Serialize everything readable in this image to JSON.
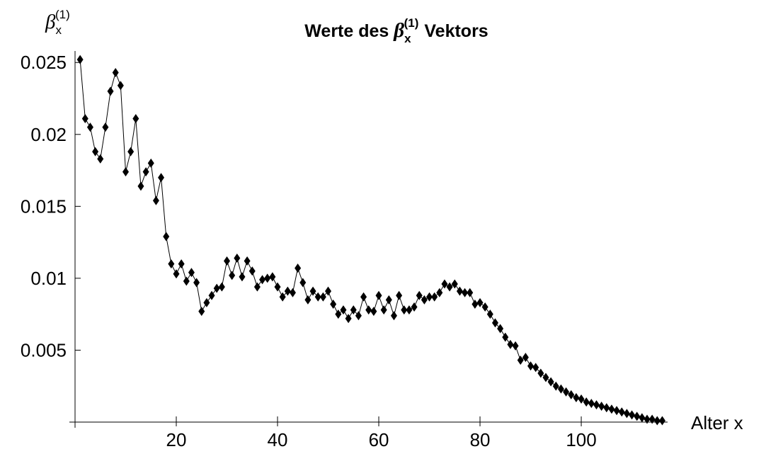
{
  "chart_data": {
    "type": "line",
    "title": {
      "prefix": "Werte des",
      "symbol": "β",
      "subscript": "x",
      "superscript": "(1)",
      "suffix": "Vektors"
    },
    "ylabel": {
      "symbol": "β",
      "subscript": "x",
      "superscript": "(1)"
    },
    "xlabel": "Alter x",
    "x": [
      1,
      2,
      3,
      4,
      5,
      6,
      7,
      8,
      9,
      10,
      11,
      12,
      13,
      14,
      15,
      16,
      17,
      18,
      19,
      20,
      21,
      22,
      23,
      24,
      25,
      26,
      27,
      28,
      29,
      30,
      31,
      32,
      33,
      34,
      35,
      36,
      37,
      38,
      39,
      40,
      41,
      42,
      43,
      44,
      45,
      46,
      47,
      48,
      49,
      50,
      51,
      52,
      53,
      54,
      55,
      56,
      57,
      58,
      59,
      60,
      61,
      62,
      63,
      64,
      65,
      66,
      67,
      68,
      69,
      70,
      71,
      72,
      73,
      74,
      75,
      76,
      77,
      78,
      79,
      80,
      81,
      82,
      83,
      84,
      85,
      86,
      87,
      88,
      89,
      90,
      91,
      92,
      93,
      94,
      95,
      96,
      97,
      98,
      99,
      100,
      101,
      102,
      103,
      104,
      105,
      106,
      107,
      108,
      109,
      110,
      111,
      112,
      113,
      114,
      115,
      116
    ],
    "series": [
      {
        "name": "β",
        "color": "#000000",
        "values": [
          0.0252,
          0.0211,
          0.0205,
          0.0188,
          0.0183,
          0.0205,
          0.023,
          0.0243,
          0.0234,
          0.0174,
          0.0188,
          0.0211,
          0.0164,
          0.0174,
          0.018,
          0.0154,
          0.017,
          0.0129,
          0.011,
          0.0103,
          0.011,
          0.0098,
          0.0104,
          0.0097,
          0.0077,
          0.0083,
          0.0088,
          0.0093,
          0.0094,
          0.0112,
          0.0102,
          0.0114,
          0.0101,
          0.0112,
          0.0105,
          0.0094,
          0.0099,
          0.01,
          0.0101,
          0.0094,
          0.0087,
          0.0091,
          0.009,
          0.0107,
          0.0097,
          0.0085,
          0.0091,
          0.0087,
          0.0087,
          0.0091,
          0.0082,
          0.0075,
          0.0078,
          0.0072,
          0.0078,
          0.0074,
          0.0087,
          0.0078,
          0.0077,
          0.0088,
          0.0078,
          0.0085,
          0.0074,
          0.0088,
          0.0078,
          0.0078,
          0.008,
          0.0088,
          0.0085,
          0.0087,
          0.0087,
          0.009,
          0.0096,
          0.0094,
          0.0096,
          0.0091,
          0.009,
          0.009,
          0.0082,
          0.0083,
          0.008,
          0.0075,
          0.0069,
          0.0065,
          0.0059,
          0.0054,
          0.0053,
          0.0043,
          0.0045,
          0.0039,
          0.0038,
          0.0034,
          0.0031,
          0.0028,
          0.0025,
          0.0023,
          0.0021,
          0.0019,
          0.0017,
          0.0016,
          0.0014,
          0.0013,
          0.0012,
          0.0011,
          0.001,
          0.0009,
          0.0008,
          0.0007,
          0.0006,
          0.0005,
          0.0004,
          0.0003,
          0.0002,
          0.0002,
          0.0001,
          0.0001
        ]
      }
    ],
    "xlim": [
      0,
      117
    ],
    "ylim": [
      0,
      0.0258
    ],
    "xticks": [
      20,
      40,
      60,
      80,
      100
    ],
    "yticks": [
      0.005,
      0.01,
      0.015,
      0.02,
      0.025
    ]
  }
}
